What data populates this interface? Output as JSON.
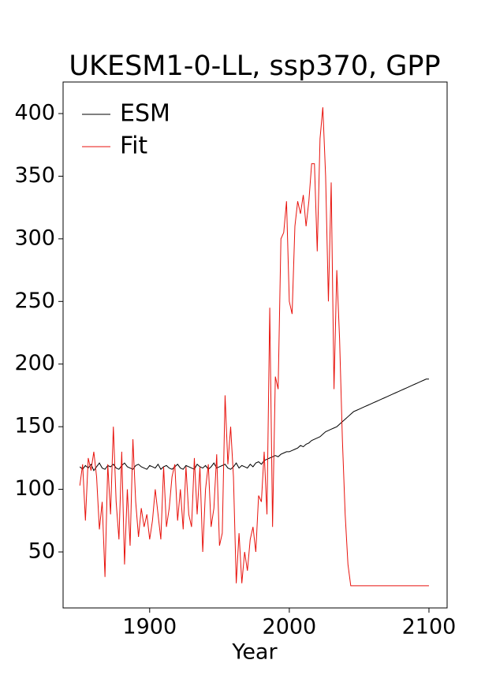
{
  "chart_data": {
    "type": "line",
    "title": "UKESM1-0-LL, ssp370, GPP",
    "x_label": "Year",
    "x": [
      1850,
      1852,
      1854,
      1856,
      1858,
      1860,
      1862,
      1864,
      1866,
      1868,
      1870,
      1872,
      1874,
      1876,
      1878,
      1880,
      1882,
      1884,
      1886,
      1888,
      1890,
      1892,
      1894,
      1896,
      1898,
      1900,
      1902,
      1904,
      1906,
      1908,
      1910,
      1912,
      1914,
      1916,
      1918,
      1920,
      1922,
      1924,
      1926,
      1928,
      1930,
      1932,
      1934,
      1936,
      1938,
      1940,
      1942,
      1944,
      1946,
      1948,
      1950,
      1952,
      1954,
      1956,
      1958,
      1960,
      1962,
      1964,
      1966,
      1968,
      1970,
      1972,
      1974,
      1976,
      1978,
      1980,
      1982,
      1984,
      1986,
      1988,
      1990,
      1992,
      1994,
      1996,
      1998,
      2000,
      2002,
      2004,
      2006,
      2008,
      2010,
      2012,
      2014,
      2016,
      2018,
      2020,
      2022,
      2024,
      2026,
      2028,
      2030,
      2032,
      2034,
      2036,
      2038,
      2040,
      2042,
      2044,
      2046,
      2048,
      2050,
      2052,
      2054,
      2056,
      2058,
      2060,
      2062,
      2064,
      2066,
      2068,
      2070,
      2072,
      2074,
      2076,
      2078,
      2080,
      2082,
      2084,
      2086,
      2088,
      2090,
      2092,
      2094,
      2096,
      2098,
      2100
    ],
    "series": [
      {
        "name": "ESM",
        "color": "#000000",
        "values": [
          118,
          116,
          119,
          117,
          120,
          115,
          118,
          121,
          117,
          116,
          119,
          118,
          120,
          117,
          116,
          119,
          121,
          118,
          117,
          116,
          119,
          120,
          118,
          117,
          116,
          119,
          118,
          117,
          120,
          116,
          118,
          119,
          117,
          116,
          118,
          120,
          117,
          116,
          119,
          118,
          117,
          116,
          120,
          118,
          117,
          119,
          116,
          118,
          121,
          117,
          118,
          119,
          120,
          117,
          116,
          118,
          121,
          117,
          119,
          118,
          117,
          120,
          118,
          121,
          122,
          120,
          123,
          124,
          125,
          126,
          127,
          126,
          128,
          129,
          130,
          130,
          131,
          132,
          133,
          135,
          134,
          136,
          137,
          139,
          140,
          141,
          142,
          144,
          146,
          147,
          148,
          149,
          150,
          152,
          154,
          156,
          158,
          160,
          162,
          163,
          164,
          165,
          166,
          167,
          168,
          169,
          170,
          171,
          172,
          173,
          174,
          175,
          176,
          177,
          178,
          179,
          180,
          181,
          182,
          183,
          184,
          185,
          186,
          187,
          188,
          188
        ]
      },
      {
        "name": "Fit",
        "color": "#e8120c",
        "values": [
          103,
          120,
          75,
          125,
          115,
          130,
          110,
          68,
          90,
          30,
          120,
          80,
          150,
          90,
          60,
          130,
          40,
          100,
          55,
          140,
          90,
          62,
          85,
          70,
          80,
          60,
          75,
          100,
          80,
          60,
          118,
          70,
          85,
          110,
          120,
          75,
          100,
          68,
          118,
          80,
          70,
          125,
          80,
          118,
          50,
          100,
          120,
          70,
          85,
          128,
          55,
          65,
          175,
          120,
          150,
          110,
          25,
          65,
          25,
          50,
          35,
          60,
          70,
          50,
          95,
          90,
          130,
          80,
          245,
          70,
          190,
          180,
          300,
          305,
          330,
          250,
          240,
          310,
          330,
          320,
          335,
          310,
          330,
          360,
          360,
          290,
          380,
          405,
          350,
          250,
          345,
          180,
          275,
          220,
          140,
          80,
          40,
          23,
          23,
          23,
          23,
          23,
          23,
          23,
          23,
          23,
          23,
          23,
          23,
          23,
          23,
          23,
          23,
          23,
          23,
          23,
          23,
          23,
          23,
          23,
          23,
          23,
          23,
          23,
          23,
          23
        ]
      }
    ],
    "xlim": [
      1838,
      2113
    ],
    "ylim": [
      5.3,
      425.2
    ],
    "xticks": [
      1900,
      2000,
      2100
    ],
    "yticks": [
      50,
      100,
      150,
      200,
      250,
      300,
      350,
      400
    ],
    "legend": "upper left"
  }
}
